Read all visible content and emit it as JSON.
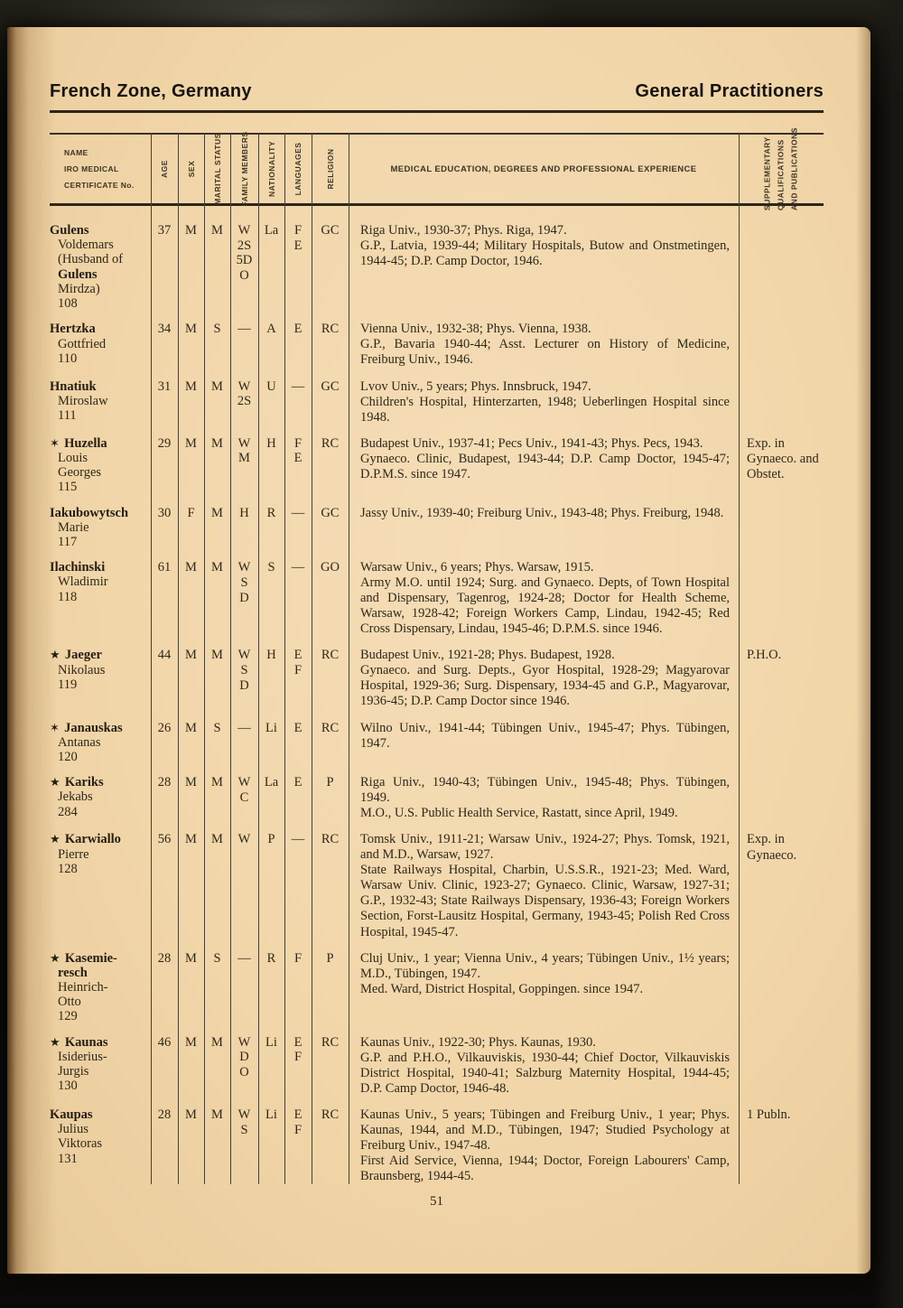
{
  "page": {
    "header_left": "French Zone, Germany",
    "header_right": "General Practitioners",
    "page_number": "51"
  },
  "colors": {
    "paper": "#f1d6a9",
    "ink": "#2f2718",
    "rule": "#2c251b",
    "backdrop": "#0b0a08"
  },
  "table": {
    "headers": {
      "name_lines": [
        "NAME",
        "IRO MEDICAL",
        "CERTIFICATE No."
      ],
      "age": "AGE",
      "sex": "SEX",
      "marital_status": "MARITAL STATUS",
      "family_members": "FAMILY MEMBERS",
      "nationality": "NATIONALITY",
      "languages": "LANGUAGES",
      "religion": "RELIGION",
      "education": "MEDICAL EDUCATION, DEGREES AND PROFESSIONAL EXPERIENCE",
      "supplementary_lines": [
        "SUPPLEMENTARY",
        "QUALIFICATIONS",
        "AND  PUBLICATIONS"
      ]
    },
    "rows": [
      {
        "marker": "",
        "name_lines": [
          {
            "t": "Gulens",
            "b": 1
          },
          {
            "t": "Voldemars"
          },
          {
            "t": "(Husband of"
          },
          {
            "t": "Gulens",
            "b": 1
          },
          {
            "t": "Mirdza)"
          },
          {
            "t": "108"
          }
        ],
        "age": "37",
        "sex": "M",
        "marital": "M",
        "family": [
          "W",
          "2S",
          "5D",
          "O"
        ],
        "nationality": "La",
        "languages": [
          "F",
          "E"
        ],
        "religion": "GC",
        "education": [
          "Riga Univ., 1930-37; Phys. Riga, 1947.",
          "G.P., Latvia, 1939-44; Military Hospitals, Butow and Onstmetingen, 1944-45; D.P. Camp Doctor, 1946."
        ],
        "supplementary": ""
      },
      {
        "marker": "",
        "name_lines": [
          {
            "t": "Hertzka",
            "b": 1
          },
          {
            "t": "Gottfried"
          },
          {
            "t": "110"
          }
        ],
        "age": "34",
        "sex": "M",
        "marital": "S",
        "family": [
          "—"
        ],
        "nationality": "A",
        "languages": [
          "E"
        ],
        "religion": "RC",
        "education": [
          "Vienna Univ., 1932-38; Phys. Vienna, 1938.",
          "G.P., Bavaria 1940-44; Asst. Lecturer on History of Medicine, Freiburg Univ., 1946."
        ],
        "supplementary": ""
      },
      {
        "marker": "",
        "name_lines": [
          {
            "t": "Hnatiuk",
            "b": 1
          },
          {
            "t": "Miroslaw"
          },
          {
            "t": "111"
          }
        ],
        "age": "31",
        "sex": "M",
        "marital": "M",
        "family": [
          "W",
          "2S"
        ],
        "nationality": "U",
        "languages": [
          "—"
        ],
        "religion": "GC",
        "education": [
          "Lvov Univ., 5 years; Phys. Innsbruck, 1947.",
          "Children's Hospital, Hinterzarten, 1948; Ueberlingen Hospital since 1948."
        ],
        "supplementary": ""
      },
      {
        "marker": "✶",
        "name_lines": [
          {
            "t": "Huzella",
            "b": 1
          },
          {
            "t": "Louis"
          },
          {
            "t": "Georges"
          },
          {
            "t": "115"
          }
        ],
        "age": "29",
        "sex": "M",
        "marital": "M",
        "family": [
          "W",
          "M"
        ],
        "nationality": "H",
        "languages": [
          "F",
          "E"
        ],
        "religion": "RC",
        "education": [
          "Budapest Univ., 1937-41; Pecs Univ., 1941-43; Phys. Pecs, 1943.",
          "Gynaeco. Clinic, Budapest, 1943-44; D.P. Camp Doctor, 1945-47; D.P.M.S. since 1947."
        ],
        "supplementary": "Exp. in Gynaeco. and Obstet."
      },
      {
        "marker": "",
        "name_lines": [
          {
            "t": "Iakubowytsch",
            "b": 1
          },
          {
            "t": "Marie"
          },
          {
            "t": "117"
          }
        ],
        "age": "30",
        "sex": "F",
        "marital": "M",
        "family": [
          "H"
        ],
        "nationality": "R",
        "languages": [
          "—"
        ],
        "religion": "GC",
        "education": [
          "Jassy Univ., 1939-40; Freiburg Univ., 1943-48; Phys. Freiburg, 1948."
        ],
        "supplementary": ""
      },
      {
        "marker": "",
        "name_lines": [
          {
            "t": "Ilachinski",
            "b": 1
          },
          {
            "t": "Wladimir"
          },
          {
            "t": "118"
          }
        ],
        "age": "61",
        "sex": "M",
        "marital": "M",
        "family": [
          "W",
          "S",
          "D"
        ],
        "nationality": "S",
        "languages": [
          "—"
        ],
        "religion": "GO",
        "education": [
          "Warsaw Univ., 6 years; Phys. Warsaw, 1915.",
          "Army M.O. until 1924; Surg. and Gynaeco. Depts, of Town Hospital and Dispensary, Tagenrog, 1924-28; Doctor for Health Scheme, Warsaw, 1928-42; Foreign Workers Camp, Lindau, 1942-45; Red Cross Dispensary, Lindau, 1945-46; D.P.M.S. since 1946."
        ],
        "supplementary": ""
      },
      {
        "marker": "★",
        "name_lines": [
          {
            "t": "Jaeger",
            "b": 1
          },
          {
            "t": "Nikolaus"
          },
          {
            "t": "119"
          }
        ],
        "age": "44",
        "sex": "M",
        "marital": "M",
        "family": [
          "W",
          "S",
          "D"
        ],
        "nationality": "H",
        "languages": [
          "E",
          "F"
        ],
        "religion": "RC",
        "education": [
          "Budapest Univ., 1921-28; Phys. Budapest, 1928.",
          "Gynaeco. and Surg. Depts., Gyor Hospital, 1928-29; Magyarovar Hospital, 1929-36; Surg. Dispensary, 1934-45 and G.P., Magyarovar, 1936-45; D.P. Camp Doctor since 1946."
        ],
        "supplementary": "P.H.O."
      },
      {
        "marker": "✶",
        "name_lines": [
          {
            "t": "Janauskas",
            "b": 1
          },
          {
            "t": "Antanas"
          },
          {
            "t": "120"
          }
        ],
        "age": "26",
        "sex": "M",
        "marital": "S",
        "family": [
          "—"
        ],
        "nationality": "Li",
        "languages": [
          "E"
        ],
        "religion": "RC",
        "education": [
          "Wilno Univ., 1941-44; Tübingen Univ., 1945-47; Phys. Tübingen, 1947."
        ],
        "supplementary": ""
      },
      {
        "marker": "★",
        "name_lines": [
          {
            "t": "Kariks",
            "b": 1
          },
          {
            "t": "Jekabs"
          },
          {
            "t": "284"
          }
        ],
        "age": "28",
        "sex": "M",
        "marital": "M",
        "family": [
          "W",
          "C"
        ],
        "nationality": "La",
        "languages": [
          "E"
        ],
        "religion": "P",
        "education": [
          "Riga Univ., 1940-43; Tübingen Univ., 1945-48; Phys. Tübingen, 1949.",
          "M.O., U.S. Public Health Service, Rastatt, since April, 1949."
        ],
        "supplementary": ""
      },
      {
        "marker": "★",
        "name_lines": [
          {
            "t": "Karwiallo",
            "b": 1
          },
          {
            "t": "Pierre"
          },
          {
            "t": "128"
          }
        ],
        "age": "56",
        "sex": "M",
        "marital": "M",
        "family": [
          "W"
        ],
        "nationality": "P",
        "languages": [
          "—"
        ],
        "religion": "RC",
        "education": [
          "Tomsk Univ., 1911-21; Warsaw Univ., 1924-27; Phys. Tomsk, 1921, and M.D., Warsaw, 1927.",
          "State Railways Hospital, Charbin, U.S.S.R., 1921-23; Med. Ward, Warsaw Univ. Clinic, 1923-27; Gynaeco. Clinic, Warsaw, 1927-31; G.P., 1932-43; State Railways Dispensary, 1936-43; Foreign Workers Section, Forst-Lausitz Hospital, Germany, 1943-45; Polish Red Cross Hospital, 1945-47."
        ],
        "supplementary": "Exp. in Gynaeco."
      },
      {
        "marker": "★",
        "name_lines": [
          {
            "t": "Kasemie-",
            "b": 1
          },
          {
            "t": "resch",
            "b": 1
          },
          {
            "t": "Heinrich-"
          },
          {
            "t": "Otto"
          },
          {
            "t": "129"
          }
        ],
        "age": "28",
        "sex": "M",
        "marital": "S",
        "family": [
          "—"
        ],
        "nationality": "R",
        "languages": [
          "F"
        ],
        "religion": "P",
        "education": [
          "Cluj Univ., 1 year; Vienna Univ., 4 years; Tübingen Univ., 1½ years; M.D., Tübingen, 1947.",
          "Med. Ward, District Hospital, Goppingen. since 1947."
        ],
        "supplementary": ""
      },
      {
        "marker": "★",
        "name_lines": [
          {
            "t": "Kaunas",
            "b": 1
          },
          {
            "t": "Isiderius-"
          },
          {
            "t": "Jurgis"
          },
          {
            "t": "130"
          }
        ],
        "age": "46",
        "sex": "M",
        "marital": "M",
        "family": [
          "W",
          "D",
          "O"
        ],
        "nationality": "Li",
        "languages": [
          "E",
          "F"
        ],
        "religion": "RC",
        "education": [
          "Kaunas Univ., 1922-30; Phys. Kaunas, 1930.",
          "G.P. and P.H.O., Vilkauviskis, 1930-44; Chief Doctor, Vilkauviskis District Hospital, 1940-41; Salzburg Maternity Hospital, 1944-45; D.P. Camp Doctor, 1946-48."
        ],
        "supplementary": ""
      },
      {
        "marker": "",
        "name_lines": [
          {
            "t": "Kaupas",
            "b": 1
          },
          {
            "t": "Julius"
          },
          {
            "t": "Viktoras"
          },
          {
            "t": "131"
          }
        ],
        "age": "28",
        "sex": "M",
        "marital": "M",
        "family": [
          "W",
          "S"
        ],
        "nationality": "Li",
        "languages": [
          "E",
          "F"
        ],
        "religion": "RC",
        "education": [
          "Kaunas Univ., 5 years; Tübingen and Freiburg Univ., 1 year; Phys. Kaunas, 1944, and M.D., Tübingen, 1947; Studied Psychology at Freiburg Univ., 1947-48.",
          "First Aid Service, Vienna, 1944; Doctor, Foreign Labourers' Camp, Braunsberg, 1944-45."
        ],
        "supplementary": "1 Publn."
      }
    ]
  }
}
